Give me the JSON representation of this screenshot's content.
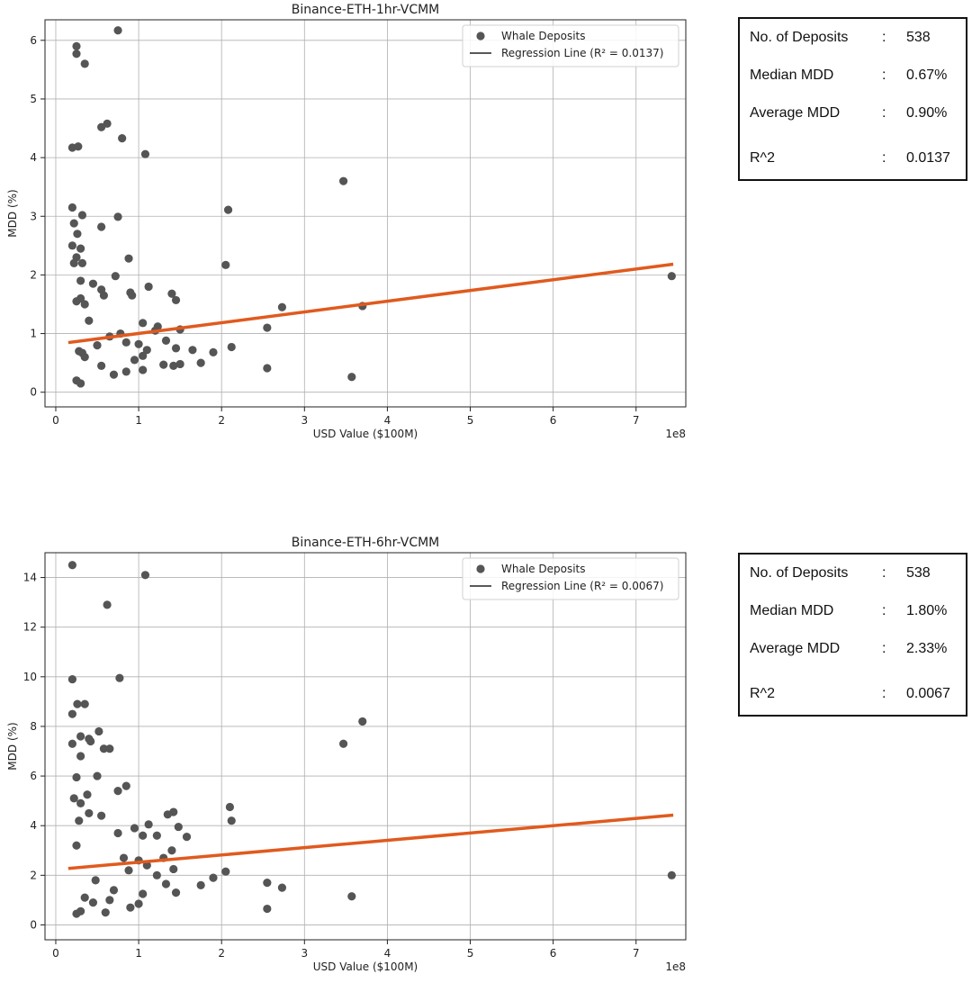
{
  "panels": [
    {
      "stats": {
        "deposits_label": "No. of Deposits",
        "deposits_value": "538",
        "median_label": "Median MDD",
        "median_value": "0.67%",
        "average_label": "Average MDD",
        "average_value": "0.90%",
        "r2_label": "R^2",
        "r2_value": "0.0137",
        "separator": ":"
      }
    },
    {
      "stats": {
        "deposits_label": "No. of Deposits",
        "deposits_value": "538",
        "median_label": "Median MDD",
        "median_value": "1.80%",
        "average_label": "Average MDD",
        "average_value": "2.33%",
        "r2_label": "R^2",
        "r2_value": "0.0067",
        "separator": ":"
      }
    }
  ],
  "chart_data": [
    {
      "type": "scatter",
      "title": "Binance-ETH-1hr-VCMM",
      "xlabel": "USD Value ($100M)",
      "ylabel": "MDD (%)",
      "x_scale_label": "1e8",
      "xlim": [
        -0.13,
        7.6
      ],
      "ylim": [
        -0.25,
        6.35
      ],
      "xticks": [
        0,
        1,
        2,
        3,
        4,
        5,
        6,
        7
      ],
      "yticks": [
        0,
        1,
        2,
        3,
        4,
        5,
        6
      ],
      "grid": true,
      "legend_position": "top-right",
      "colors": {
        "points": "#555555",
        "regression": "#e05a1e",
        "legend_line": "#222222"
      },
      "series": [
        {
          "name": "Whale Deposits",
          "x": [
            0.75,
            0.25,
            0.25,
            0.35,
            0.62,
            0.55,
            0.8,
            0.2,
            0.27,
            1.08,
            3.47,
            0.2,
            0.32,
            0.75,
            2.08,
            0.22,
            0.26,
            0.55,
            0.2,
            0.3,
            0.25,
            0.88,
            0.22,
            0.32,
            2.05,
            0.72,
            0.3,
            0.45,
            1.12,
            0.9,
            1.4,
            0.55,
            0.58,
            1.45,
            0.3,
            0.25,
            0.92,
            2.73,
            3.7,
            0.35,
            1.05,
            1.5,
            1.23,
            2.55,
            0.4,
            1.2,
            0.78,
            0.65,
            1.33,
            0.85,
            1.0,
            0.5,
            1.65,
            1.1,
            0.28,
            0.32,
            1.45,
            1.9,
            2.12,
            1.05,
            0.35,
            1.5,
            0.95,
            1.75,
            0.55,
            1.3,
            1.42,
            2.55,
            0.85,
            3.57,
            0.7,
            1.05,
            0.25,
            0.3,
            7.43
          ],
          "y": [
            6.17,
            5.9,
            5.77,
            5.6,
            4.58,
            4.52,
            4.33,
            4.17,
            4.19,
            4.06,
            3.6,
            3.15,
            3.02,
            2.99,
            3.11,
            2.88,
            2.7,
            2.82,
            2.5,
            2.45,
            2.3,
            2.28,
            2.2,
            2.2,
            2.17,
            1.98,
            1.9,
            1.85,
            1.8,
            1.7,
            1.68,
            1.75,
            1.65,
            1.57,
            1.6,
            1.55,
            1.65,
            1.45,
            1.47,
            1.5,
            1.18,
            1.07,
            1.12,
            1.1,
            1.22,
            1.05,
            1.0,
            0.95,
            0.88,
            0.85,
            0.82,
            0.8,
            0.72,
            0.72,
            0.7,
            0.67,
            0.75,
            0.68,
            0.77,
            0.62,
            0.6,
            0.48,
            0.55,
            0.5,
            0.45,
            0.47,
            0.45,
            0.41,
            0.35,
            0.26,
            0.3,
            0.38,
            0.2,
            0.15,
            1.98
          ]
        },
        {
          "name": "Regression Line (R² = 0.0137)",
          "type": "line",
          "x": [
            0.17,
            7.43
          ],
          "y": [
            0.85,
            2.18
          ]
        }
      ]
    },
    {
      "type": "scatter",
      "title": "Binance-ETH-6hr-VCMM",
      "xlabel": "USD Value ($100M)",
      "ylabel": "MDD (%)",
      "x_scale_label": "1e8",
      "xlim": [
        -0.13,
        7.6
      ],
      "ylim": [
        -0.6,
        15.0
      ],
      "xticks": [
        0,
        1,
        2,
        3,
        4,
        5,
        6,
        7
      ],
      "yticks": [
        0,
        2,
        4,
        6,
        8,
        10,
        12,
        14
      ],
      "grid": true,
      "legend_position": "top-right",
      "colors": {
        "points": "#555555",
        "regression": "#e05a1e",
        "legend_line": "#222222"
      },
      "series": [
        {
          "name": "Whale Deposits",
          "x": [
            0.2,
            1.08,
            0.62,
            0.2,
            0.77,
            0.26,
            0.35,
            0.2,
            0.52,
            0.3,
            0.4,
            0.42,
            0.65,
            0.58,
            0.2,
            0.3,
            0.5,
            0.25,
            0.75,
            0.85,
            0.38,
            0.22,
            0.3,
            0.4,
            0.55,
            1.35,
            0.28,
            1.42,
            2.1,
            0.95,
            1.12,
            1.48,
            2.12,
            1.58,
            1.05,
            1.22,
            0.75,
            0.82,
            1.3,
            1.42,
            3.47,
            3.7,
            0.25,
            1.4,
            1.0,
            1.1,
            0.88,
            1.22,
            1.9,
            2.05,
            2.55,
            1.75,
            2.73,
            1.33,
            1.45,
            1.05,
            3.57,
            0.65,
            1.0,
            2.55,
            0.3,
            0.25,
            0.6,
            0.9,
            0.35,
            0.45,
            7.43,
            0.48,
            0.7
          ],
          "y": [
            14.5,
            14.1,
            12.9,
            9.9,
            9.95,
            8.9,
            8.9,
            8.5,
            7.8,
            7.6,
            7.5,
            7.4,
            7.1,
            7.1,
            7.3,
            6.8,
            6.0,
            5.95,
            5.4,
            5.6,
            5.25,
            5.1,
            4.9,
            4.5,
            4.4,
            4.45,
            4.2,
            4.55,
            4.75,
            3.9,
            4.05,
            3.95,
            4.2,
            3.55,
            3.6,
            3.6,
            3.7,
            2.7,
            2.7,
            2.25,
            7.3,
            8.2,
            3.2,
            3.0,
            2.6,
            2.4,
            2.2,
            2.0,
            1.9,
            2.15,
            1.7,
            1.6,
            1.5,
            1.65,
            1.3,
            1.25,
            1.15,
            1.0,
            0.85,
            0.65,
            0.55,
            0.45,
            0.5,
            0.7,
            1.1,
            0.9,
            2.0,
            1.8,
            1.4
          ]
        },
        {
          "name": "Regression Line (R² = 0.0067)",
          "type": "line",
          "x": [
            0.17,
            7.43
          ],
          "y": [
            2.28,
            4.42
          ]
        }
      ]
    }
  ]
}
